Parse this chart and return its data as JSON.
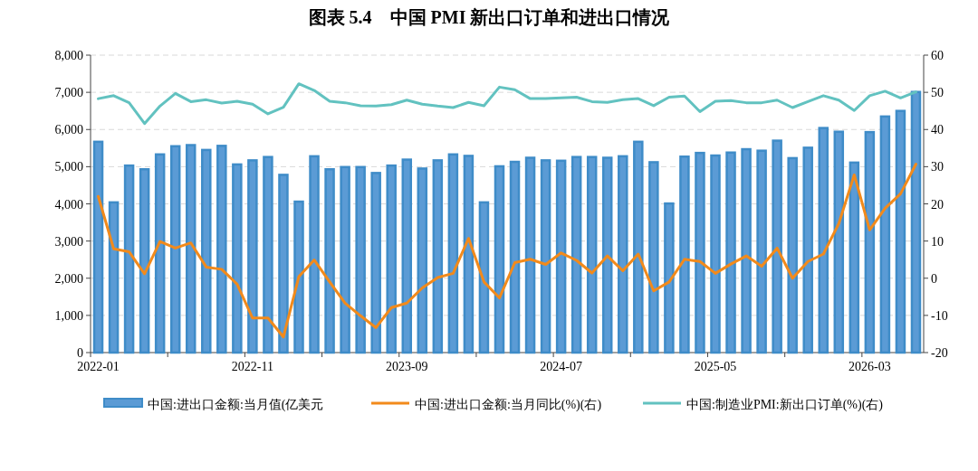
{
  "chart_data": {
    "type": "bar",
    "title": "图表 5.4    中国 PMI 新出口订单和进出口情况",
    "categories": [
      "2022-01",
      null,
      null,
      null,
      null,
      null,
      null,
      null,
      null,
      null,
      "2022-11",
      null,
      null,
      null,
      null,
      null,
      null,
      null,
      null,
      null,
      "2023-09",
      null,
      null,
      null,
      null,
      null,
      null,
      null,
      null,
      null,
      "2024-07",
      null,
      null,
      null,
      null,
      null,
      null,
      null,
      null,
      null,
      "2025-05",
      null,
      null,
      null,
      null,
      null,
      null,
      null,
      null,
      null,
      "2026-03",
      null,
      null,
      null
    ],
    "series": [
      {
        "name": "中国:进出口金额:当月值(亿美元",
        "color": "#3f8cc8",
        "values": [
          5670,
          4040,
          5030,
          4930,
          5330,
          5550,
          5580,
          5450,
          5560,
          5060,
          5170,
          5260,
          4780,
          4060,
          5280,
          4930,
          4990,
          4990,
          4830,
          5030,
          5190,
          4950,
          5170,
          5330,
          5290,
          4040,
          5010,
          5130,
          5240,
          5170,
          5160,
          5260,
          5260,
          5240,
          5280,
          5670,
          5120,
          4010,
          5270,
          5370,
          5300,
          5380,
          5470,
          5430,
          5700,
          5230,
          5510,
          6040,
          5940,
          5110,
          5930,
          6350,
          6500,
          7010
        ]
      },
      {
        "name": "中国:进出口金额:当月同比(%)(右)",
        "type": "line",
        "axis": "y2",
        "color": "#f28a1b",
        "values": [
          22.0,
          7.9,
          7.1,
          1.2,
          9.9,
          8.1,
          9.5,
          3.0,
          2.4,
          -1.6,
          -10.7,
          -10.7,
          -15.8,
          0.4,
          4.9,
          -1.0,
          -6.7,
          -10.1,
          -13.3,
          -7.9,
          -6.7,
          -2.6,
          0.2,
          1.3,
          10.7,
          -1.0,
          -5.3,
          4.2,
          5.1,
          3.7,
          6.8,
          4.8,
          1.4,
          6.0,
          2.0,
          6.5,
          -3.4,
          -1.0,
          5.1,
          4.5,
          1.3,
          3.8,
          6.0,
          3.2,
          8.1,
          0.0,
          4.5,
          6.5,
          14.7,
          27.8,
          13.0,
          18.8,
          22.7,
          30.7
        ]
      },
      {
        "name": "中国:制造业PMI:新出口订单(%)(右)",
        "type": "line",
        "axis": "y2",
        "color": "#62c2c0",
        "values": [
          48.3,
          49.1,
          47.2,
          41.6,
          46.3,
          49.7,
          47.5,
          48.0,
          47.1,
          47.6,
          46.8,
          44.2,
          46.0,
          52.3,
          50.5,
          47.6,
          47.2,
          46.4,
          46.3,
          46.7,
          47.9,
          46.8,
          46.3,
          45.9,
          47.3,
          46.4,
          51.4,
          50.7,
          48.3,
          48.3,
          48.5,
          48.7,
          47.5,
          47.3,
          48.0,
          48.3,
          46.4,
          48.7,
          49.0,
          44.8,
          47.6,
          47.8,
          47.2,
          47.2,
          47.9,
          45.9,
          47.5,
          49.1,
          47.9,
          45.1,
          49.1,
          50.3,
          48.5,
          50.1
        ]
      }
    ],
    "ylim": [
      0,
      8000
    ],
    "yticks": [
      0,
      {
        "value": 1000,
        "label": "1,000"
      },
      {
        "value": 2000,
        "label": "2,000"
      },
      {
        "value": 3000,
        "label": "3,000"
      },
      {
        "value": 4000,
        "label": "4,000"
      },
      {
        "value": 5000,
        "label": "5,000"
      },
      {
        "value": 6000,
        "label": "6,000"
      },
      {
        "value": 7000,
        "label": "7,000"
      },
      {
        "value": 8000,
        "label": "8,000"
      }
    ],
    "y2lim": [
      -20,
      60
    ],
    "y2ticks": [
      -20,
      -10,
      0,
      10,
      20,
      30,
      40,
      50,
      60
    ],
    "grid": "y",
    "legend": "bottom",
    "marker": "none",
    "line_style": "solid"
  }
}
